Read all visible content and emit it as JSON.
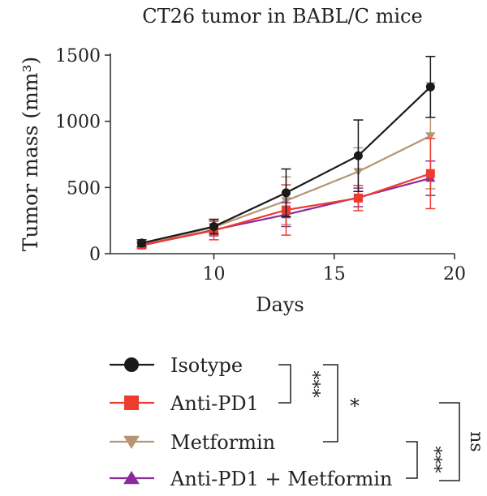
{
  "chart_data": {
    "type": "line",
    "title": "CT26 tumor in BABL/C mice",
    "xlabel": "Days",
    "ylabel": "Tumor mass (mm³)",
    "xlim": [
      5.7,
      20
    ],
    "ylim": [
      0,
      1500
    ],
    "xticks": [
      10,
      15,
      20
    ],
    "yticks": [
      0,
      500,
      1000,
      1500
    ],
    "grid": false,
    "legend_position": "below",
    "series": [
      {
        "name": "Isotype",
        "color": "#1a1a1a",
        "marker": "circle",
        "x": [
          7,
          10,
          13,
          16,
          19
        ],
        "y": [
          80,
          205,
          460,
          740,
          1260
        ],
        "err": [
          25,
          55,
          180,
          270,
          230
        ]
      },
      {
        "name": "Anti-PD1",
        "color": "#ee3b2f",
        "marker": "square",
        "x": [
          7,
          10,
          13,
          16,
          19
        ],
        "y": [
          65,
          175,
          330,
          420,
          605
        ],
        "err": [
          20,
          70,
          190,
          95,
          265
        ]
      },
      {
        "name": "Metformin",
        "color": "#b59574",
        "marker": "triangle-down",
        "x": [
          7,
          10,
          13,
          16,
          19
        ],
        "y": [
          70,
          200,
          400,
          620,
          890
        ],
        "err": [
          20,
          50,
          180,
          180,
          400
        ]
      },
      {
        "name": "Anti-PD1 + Metformin",
        "color": "#8a2a9b",
        "marker": "triangle-up",
        "x": [
          7,
          10,
          13,
          16,
          19
        ],
        "y": [
          62,
          180,
          295,
          425,
          570
        ],
        "err": [
          18,
          45,
          90,
          70,
          130
        ]
      }
    ],
    "significance": [
      {
        "label": "***",
        "between": [
          "Isotype",
          "Anti-PD1"
        ]
      },
      {
        "label": "*",
        "between": [
          "Isotype",
          "Metformin"
        ]
      },
      {
        "label": "***",
        "between": [
          "Metformin",
          "Anti-PD1 + Metformin"
        ]
      },
      {
        "label": "ns",
        "between": [
          "Anti-PD1",
          "Anti-PD1 + Metformin"
        ]
      }
    ]
  }
}
